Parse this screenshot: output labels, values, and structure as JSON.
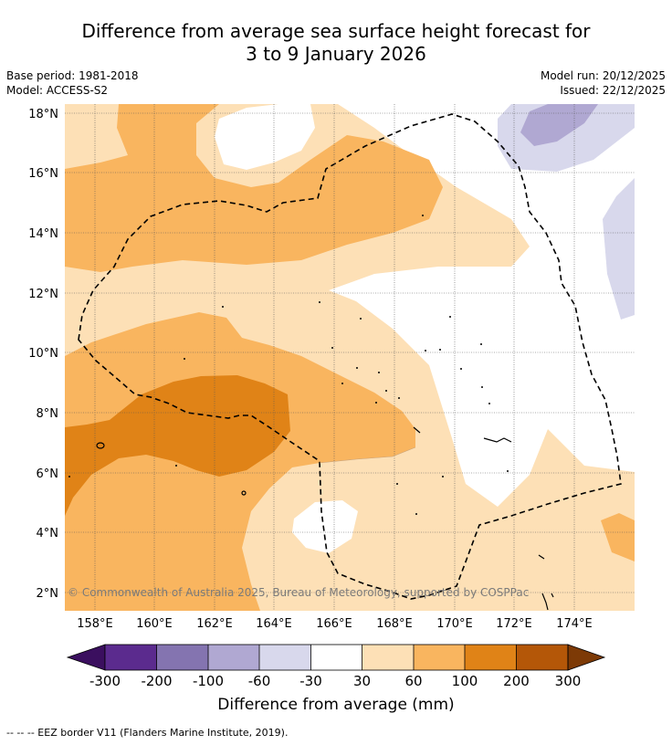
{
  "title_line1": "Difference from average sea surface height forecast for",
  "title_line2": "3 to 9 January 2026",
  "meta_left": {
    "base_period": "Base period: 1981-2018",
    "model": "Model: ACCESS-S2"
  },
  "meta_right": {
    "model_run": "Model run: 20/12/2025",
    "issued": "Issued: 22/12/2025"
  },
  "axes": {
    "lon_ticks": [
      "158°E",
      "160°E",
      "162°E",
      "164°E",
      "166°E",
      "168°E",
      "170°E",
      "172°E",
      "174°E"
    ],
    "lat_ticks": [
      "18°N",
      "16°N",
      "14°N",
      "12°N",
      "10°N",
      "8°N",
      "6°N",
      "4°N",
      "2°N"
    ]
  },
  "copyright": "© Commonwealth of Australia 2025, Bureau of Meteorology, supported by COSPPac",
  "colorbar": {
    "label": "Difference from average (mm)",
    "ticks": [
      "-300",
      "-200",
      "-100",
      "-60",
      "-30",
      "30",
      "60",
      "100",
      "200",
      "300"
    ],
    "colors": [
      "#3b0f5f",
      "#5b2b8e",
      "#8474b0",
      "#b0a8d2",
      "#d8d8ec",
      "#ffffff",
      "#fde0b6",
      "#f9b55f",
      "#e08317",
      "#b45708",
      "#7d3a06"
    ]
  },
  "footer": "--  --  -- EEZ border V11 (Flanders Marine Institute, 2019)."
}
